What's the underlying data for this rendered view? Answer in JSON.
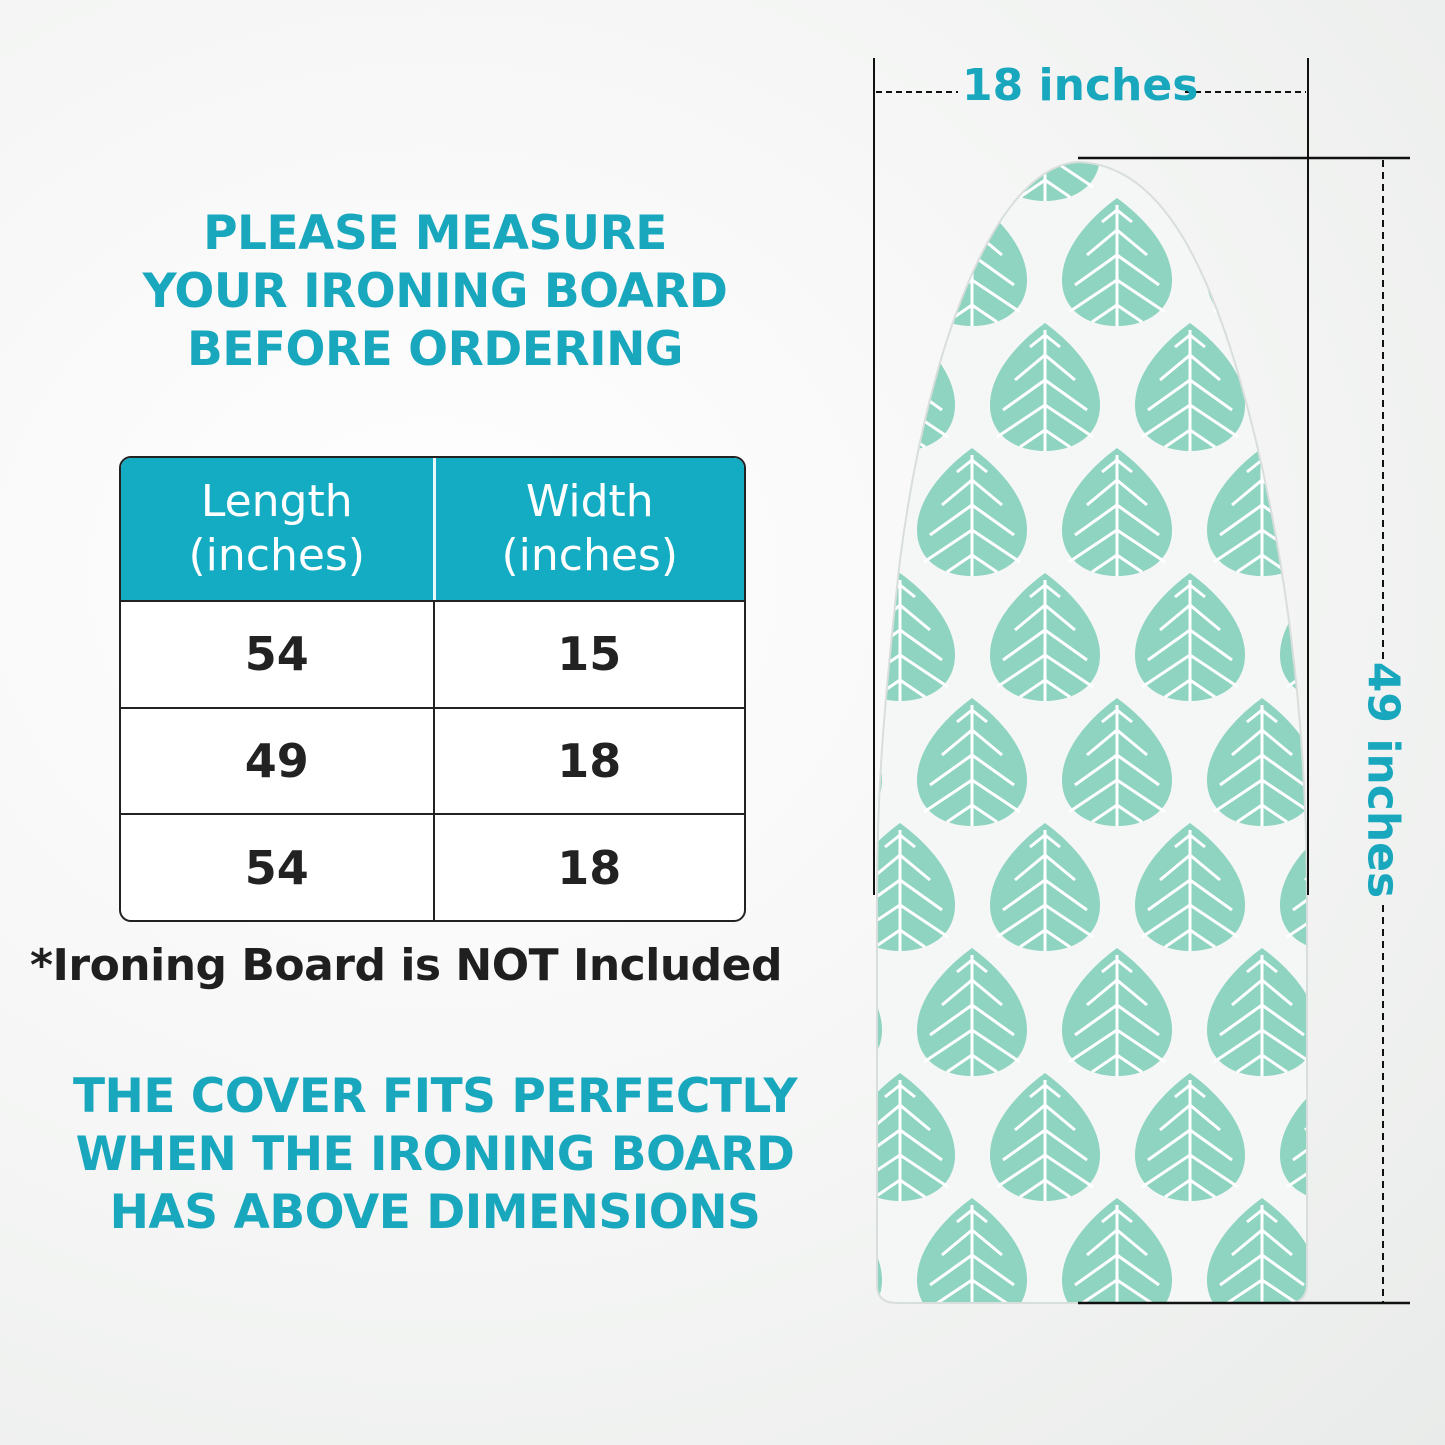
{
  "heading_top": [
    "PLEASE MEASURE",
    "YOUR IRONING BOARD",
    "BEFORE ORDERING"
  ],
  "table": {
    "headers": [
      [
        "Length",
        "(inches)"
      ],
      [
        "Width",
        "(inches)"
      ]
    ],
    "rows": [
      [
        "54",
        "15"
      ],
      [
        "49",
        "18"
      ],
      [
        "54",
        "18"
      ]
    ]
  },
  "note": "*Ironing Board is NOT Included",
  "heading_bottom": [
    "THE COVER FITS PERFECTLY",
    "WHEN THE IRONING BOARD",
    "HAS ABOVE DIMENSIONS"
  ],
  "dimensions": {
    "width_label": "18 inches",
    "length_label": "49 inches"
  },
  "colors": {
    "accent": "#18a7bd",
    "header_bg": "#14acc2",
    "leaf": "#8fd4c1"
  }
}
